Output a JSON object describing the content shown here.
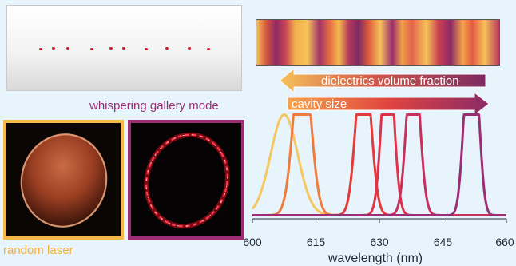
{
  "labels": {
    "whispering_gallery_mode": "whispering gallery mode",
    "random_laser": "random laser",
    "dielectrics_volume_fraction": "dielectrics volume fraction",
    "cavity_size": "cavity size"
  },
  "colors": {
    "random_laser": "#f6b84a",
    "whispering_gallery_mode": "#9b2d73",
    "background": "#e8f4fb",
    "dot_red": "#d8132b"
  },
  "chart_data": {
    "type": "line",
    "xlabel": "wavelength (nm)",
    "xlim": [
      600,
      660
    ],
    "x_ticks": [
      "600",
      "615",
      "630",
      "645",
      "660"
    ],
    "ylabel": "",
    "grid": false,
    "series": [
      {
        "color": "#f6c760",
        "peak_x": [
          607.5
        ],
        "sigma": 3.2,
        "heights": [
          1.0
        ]
      },
      {
        "color": "#ef7b3e",
        "peak_x": [
          611,
          612.5
        ],
        "sigma": 1.8,
        "heights": [
          0.95,
          0.9
        ]
      },
      {
        "color": "#e43a3a",
        "peak_x": [
          625.5,
          627
        ],
        "sigma": 1.5,
        "heights": [
          0.95,
          0.9
        ]
      },
      {
        "color": "#e0324a",
        "peak_x": [
          631.5,
          632.5
        ],
        "sigma": 1.3,
        "heights": [
          0.98,
          0.88
        ]
      },
      {
        "color": "#c7305e",
        "peak_x": [
          637.5,
          638.5
        ],
        "sigma": 1.4,
        "heights": [
          0.94,
          0.86
        ]
      },
      {
        "color": "#9b2d73",
        "peak_x": [
          650.5,
          651.8,
          653
        ],
        "sigma": 1.1,
        "heights": [
          0.85,
          0.95,
          0.8
        ]
      }
    ]
  }
}
